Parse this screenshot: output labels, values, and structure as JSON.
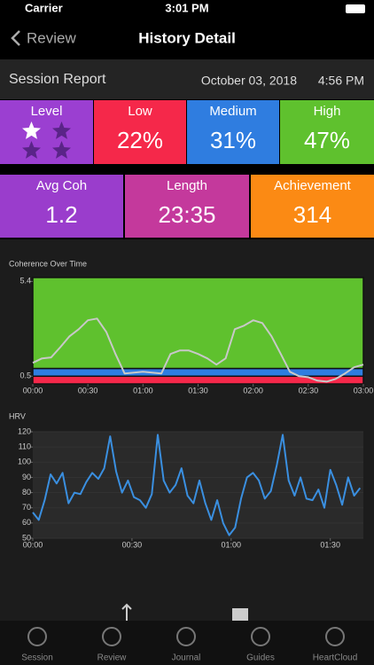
{
  "status_bar": {
    "carrier": "Carrier",
    "time": "3:01 PM"
  },
  "nav": {
    "back": "Review",
    "title": "History Detail"
  },
  "report": {
    "title": "Session Report",
    "date": "October 03, 2018",
    "time": "4:56 PM"
  },
  "tiles": [
    {
      "label": "Level",
      "level": {
        "filled": 1,
        "total": 4
      },
      "color": "#9b3fd1"
    },
    {
      "label": "Low",
      "value": "22%",
      "color": "#f5284a"
    },
    {
      "label": "Medium",
      "value": "31%",
      "color": "#2f7de0"
    },
    {
      "label": "High",
      "value": "47%",
      "color": "#5fc12e"
    },
    {
      "label": "Avg Coh",
      "value": "1.2",
      "color": "#9a3dcc"
    },
    {
      "label": "Length",
      "value": "23:35",
      "color": "#c4399c"
    },
    {
      "label": "Achievement",
      "value": "314",
      "color": "#fb8a14"
    }
  ],
  "chart_data": [
    {
      "type": "line",
      "title": "Coherence Over Time",
      "color": "#c8c8c8",
      "zones": [
        {
          "from": 0.1,
          "to": 0.5,
          "color": "#f5284a"
        },
        {
          "from": 0.5,
          "to": 0.9,
          "color": "#2f7de0"
        },
        {
          "from": 0.9,
          "to": 5.6,
          "color": "#5fc12e"
        }
      ],
      "x": [
        0,
        5,
        10,
        15,
        20,
        25,
        30,
        35,
        40,
        45,
        50,
        55,
        60,
        65,
        70,
        75,
        80,
        85,
        90,
        95,
        100,
        105,
        110,
        115,
        120,
        125,
        130,
        135,
        140,
        145,
        150,
        155,
        160,
        165,
        170,
        175,
        180
      ],
      "values": [
        1.19,
        1.42,
        1.47,
        2.0,
        2.56,
        2.93,
        3.39,
        3.48,
        2.79,
        1.65,
        0.64,
        0.68,
        0.73,
        0.68,
        0.64,
        1.65,
        1.83,
        1.83,
        1.65,
        1.42,
        1.1,
        1.42,
        2.93,
        3.11,
        3.39,
        3.25,
        2.56,
        1.65,
        0.73,
        0.5,
        0.45,
        0.27,
        0.22,
        0.36,
        0.64,
        0.96,
        1.1
      ],
      "xlim": [
        0,
        180
      ],
      "ylim": [
        0.1,
        5.6
      ],
      "yticks": [
        0.5,
        5.4
      ],
      "xticks": [
        {
          "value": 0,
          "label": "00:00"
        },
        {
          "value": 30,
          "label": "00:30"
        },
        {
          "value": 60,
          "label": "01:00"
        },
        {
          "value": 90,
          "label": "01:30"
        },
        {
          "value": 120,
          "label": "02:00"
        },
        {
          "value": 150,
          "label": "02:30"
        },
        {
          "value": 180,
          "label": "03:00"
        }
      ]
    },
    {
      "type": "line",
      "title": "HRV",
      "color": "#3a8fe0",
      "background": "#2a2a2a",
      "x": [
        0,
        1.8,
        3.6,
        5.4,
        7.2,
        9,
        10.8,
        12.6,
        14.4,
        16.2,
        18,
        19.8,
        21.6,
        23.4,
        25.2,
        27,
        28.8,
        30.6,
        32.4,
        34.2,
        36,
        37.8,
        39.6,
        41.4,
        43.2,
        45,
        46.8,
        48.6,
        50.4,
        52.2,
        54,
        55.8,
        57.6,
        59.4,
        61.2,
        63,
        64.8,
        66.6,
        68.4,
        70.2,
        72,
        73.8,
        75.6,
        77.4,
        79.2,
        81,
        82.8,
        84.6,
        86.4,
        88.2,
        90,
        91.8,
        93.6,
        95.4,
        97.2,
        99
      ],
      "values": [
        67,
        62,
        75,
        92,
        86,
        93,
        73,
        80,
        79,
        87,
        93,
        89,
        96,
        117,
        94,
        80,
        88,
        77,
        75,
        70,
        79,
        118,
        88,
        80,
        85,
        96,
        78,
        73,
        88,
        73,
        62,
        75,
        60,
        52,
        57,
        76,
        90,
        93,
        88,
        76,
        81,
        98,
        118,
        88,
        78,
        90,
        76,
        75,
        82,
        70,
        95,
        85,
        72,
        90,
        78,
        83
      ],
      "xlim": [
        0,
        100
      ],
      "ylim": [
        50,
        120
      ],
      "yticks": [
        50,
        60,
        70,
        80,
        90,
        100,
        110,
        120
      ],
      "xticks": [
        {
          "value": 0,
          "label": "00:00"
        },
        {
          "value": 30,
          "label": "00:30"
        },
        {
          "value": 60,
          "label": "01:00"
        },
        {
          "value": 90,
          "label": "01:30"
        }
      ]
    }
  ],
  "tab_bar": [
    "Session",
    "Review",
    "Journal",
    "Guides",
    "HeartCloud"
  ]
}
